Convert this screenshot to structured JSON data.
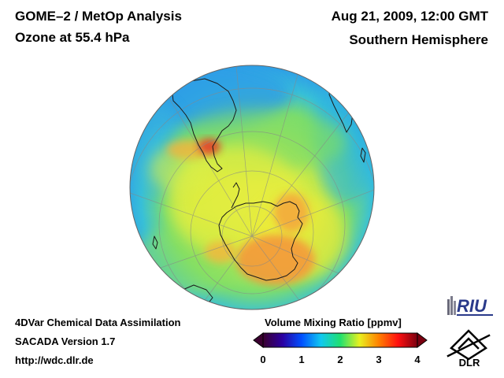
{
  "header": {
    "title_line1": "GOME–2 / MetOp Analysis",
    "title_line2": "Ozone at 55.4 hPa",
    "date": "Aug 21, 2009, 12:00 GMT",
    "region": "Southern Hemisphere"
  },
  "footer": {
    "line1": "4DVar Chemical Data Assimilation",
    "line2": "SACADA Version 1.7",
    "line3": "http://wdc.dlr.de"
  },
  "colorbar": {
    "title": "Volume Mixing Ratio [ppmv]",
    "ticks": [
      "0",
      "1",
      "2",
      "3",
      "4"
    ],
    "stops": [
      "#3b0030",
      "#2b00a0",
      "#0050ff",
      "#10c8f0",
      "#20e070",
      "#e8f020",
      "#ff8000",
      "#ff1010",
      "#7a0010"
    ]
  },
  "logos": {
    "riu": "RIU",
    "dlr": "DLR"
  },
  "colors": {
    "ocean_low": "#2aa8ec",
    "ring_green": "#74e070",
    "inner_yellow": "#dcee40",
    "high_orange": "#f7a43c",
    "peak_red": "#e44a2a",
    "coast": "#1a1a1a"
  }
}
